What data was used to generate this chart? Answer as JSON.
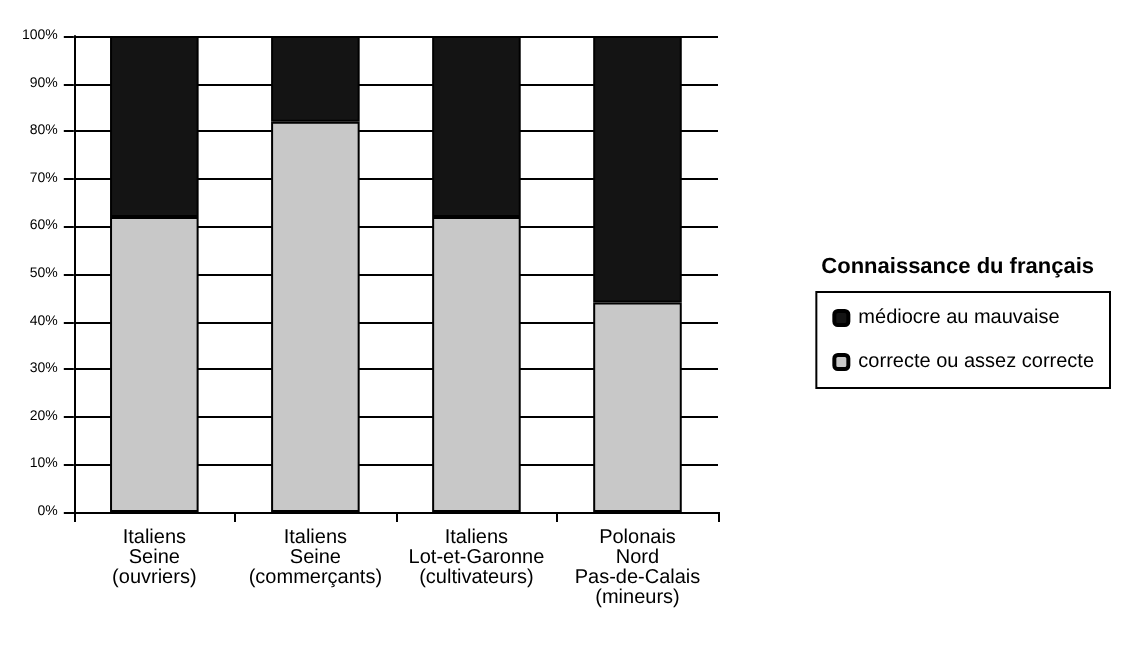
{
  "chart_data": {
    "type": "bar",
    "stacked": true,
    "legend": "right",
    "legend_title": "Connaissance du français",
    "grid": "y",
    "categories": [
      "Italiens\nSeine\n(ouvriers)",
      "Italiens\nSeine\n(commerçants)",
      "Italiens\nLot-et-Garonne\n(cultivateurs)",
      "Polonais\nNord\nPas-de-Calais\n(mineurs)"
    ],
    "series": [
      {
        "name": "correcte ou assez correcte",
        "color": "#c8c8c8",
        "values": [
          62,
          82,
          62,
          44
        ]
      },
      {
        "name": "médiocre au mauvaise",
        "color": "#141414",
        "values": [
          38,
          18,
          38,
          56
        ]
      }
    ],
    "ylim": [
      0,
      100
    ],
    "yticks": [
      {
        "value": 0,
        "label": "0%"
      },
      {
        "value": 10,
        "label": "10%"
      },
      {
        "value": 20,
        "label": "20%"
      },
      {
        "value": 30,
        "label": "30%"
      },
      {
        "value": 40,
        "label": "40%"
      },
      {
        "value": 50,
        "label": "50%"
      },
      {
        "value": 60,
        "label": "60%"
      },
      {
        "value": 70,
        "label": "70%"
      },
      {
        "value": 80,
        "label": "80%"
      },
      {
        "value": 90,
        "label": "90%"
      },
      {
        "value": 100,
        "label": "100%"
      }
    ]
  }
}
